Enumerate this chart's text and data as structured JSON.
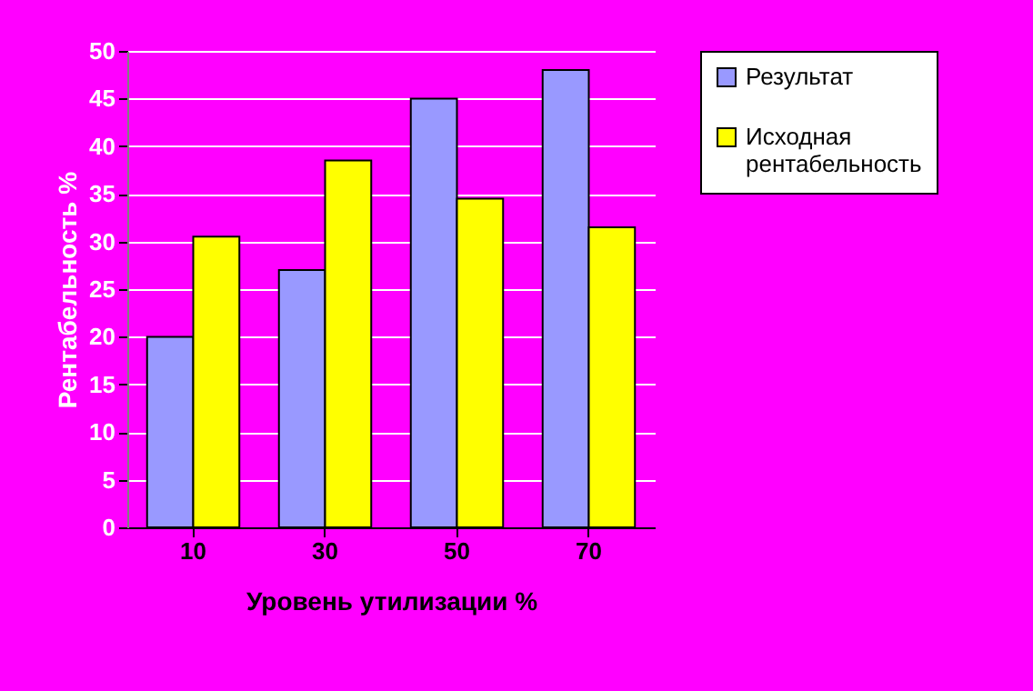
{
  "chart_data": {
    "type": "bar",
    "xlabel": "Уровень утилизации %",
    "ylabel": "Рентабельность %",
    "categories": [
      "10",
      "30",
      "50",
      "70"
    ],
    "series": [
      {
        "name": "Результат",
        "color": "#9999ff",
        "values": [
          20,
          27,
          45,
          48
        ]
      },
      {
        "name": "Исходная рентабельность",
        "color": "#ffff00",
        "values": [
          30.5,
          38.5,
          34.5,
          31.5
        ]
      }
    ],
    "ylim": [
      0,
      50
    ],
    "yticks": [
      0,
      5,
      10,
      15,
      20,
      25,
      30,
      35,
      40,
      45,
      50
    ],
    "grid": "y",
    "legend": "right"
  }
}
